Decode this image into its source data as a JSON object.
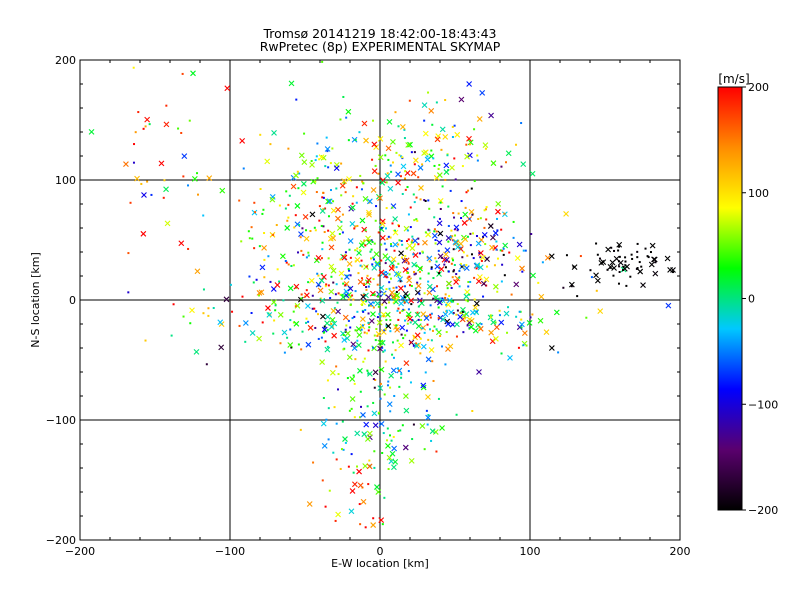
{
  "chart_data": {
    "type": "scatter",
    "title": "Tromsø 20141219 18:42:00-18:43:43",
    "subtitle": "RwPretec (8p) EXPERIMENTAL SKYMAP",
    "xlabel": "E-W location [km]",
    "ylabel": "N-S location [km]",
    "xlim": [
      -200,
      200
    ],
    "ylim": [
      -200,
      200
    ],
    "xticks": [
      -200,
      -100,
      0,
      100,
      200
    ],
    "yticks": [
      -200,
      -100,
      0,
      100,
      200
    ],
    "grid_lines": [
      -100,
      0,
      100
    ],
    "grid": true,
    "colorbar": {
      "label": "[m/s]",
      "range": [
        -200,
        200
      ],
      "ticks": [
        200,
        100,
        0,
        -100,
        -200
      ],
      "colormap": [
        "#000000",
        "#5a006e",
        "#0000ff",
        "#00c8ff",
        "#00ff00",
        "#ffff00",
        "#ff8c00",
        "#ff0000"
      ]
    },
    "markers": [
      "x",
      "dot"
    ],
    "clusters": [
      {
        "center": [
          15,
          35
        ],
        "spread": [
          45,
          25
        ],
        "count": 420,
        "velocity_mean": 60,
        "velocity_sd": 110
      },
      {
        "center": [
          5,
          -15
        ],
        "spread": [
          55,
          18
        ],
        "count": 380,
        "velocity_mean": 20,
        "velocity_sd": 110
      },
      {
        "center": [
          15,
          120
        ],
        "spread": [
          40,
          25
        ],
        "count": 160,
        "velocity_mean": 40,
        "velocity_sd": 90
      },
      {
        "center": [
          -45,
          80
        ],
        "spread": [
          30,
          40
        ],
        "count": 120,
        "velocity_mean": 80,
        "velocity_sd": 90
      },
      {
        "center": [
          0,
          -70
        ],
        "spread": [
          25,
          40
        ],
        "count": 120,
        "velocity_mean": 10,
        "velocity_sd": 80
      },
      {
        "center": [
          160,
          30
        ],
        "spread": [
          18,
          10
        ],
        "count": 70,
        "velocity_mean": -200,
        "velocity_sd": 5
      },
      {
        "center": [
          -150,
          120
        ],
        "spread": [
          25,
          40
        ],
        "count": 40,
        "velocity_mean": 120,
        "velocity_sd": 100
      },
      {
        "center": [
          60,
          45
        ],
        "spread": [
          15,
          20
        ],
        "count": 60,
        "velocity_mean": -110,
        "velocity_sd": 60
      },
      {
        "center": [
          0,
          -110
        ],
        "spread": [
          20,
          25
        ],
        "count": 50,
        "velocity_mean": 20,
        "velocity_sd": 40
      },
      {
        "center": [
          -20,
          -160
        ],
        "spread": [
          15,
          20
        ],
        "count": 25,
        "velocity_mean": 160,
        "velocity_sd": 50
      }
    ]
  }
}
